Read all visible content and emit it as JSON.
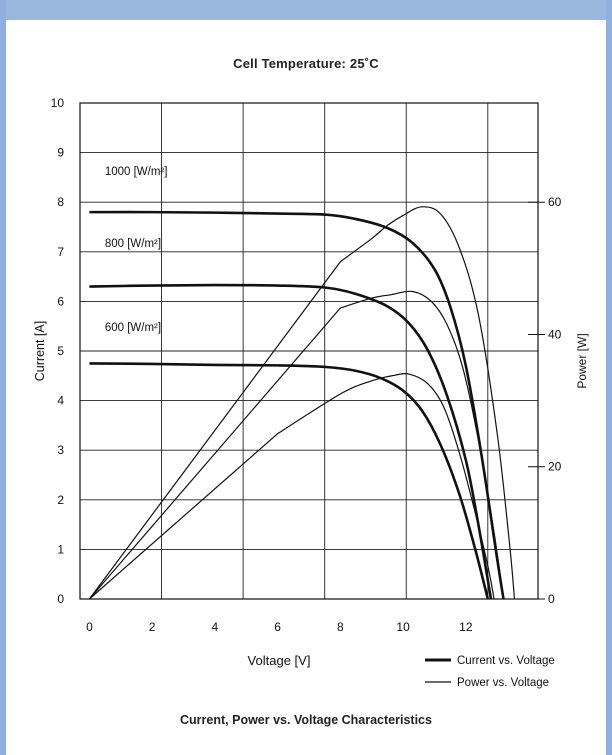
{
  "chart_data": {
    "type": "line",
    "title": "Cell Temperature:  25˚C",
    "caption": "Current, Power vs. Voltage Characteristics",
    "xlabel": "Voltage [V]",
    "ylabel": "Current [A]",
    "y2label": "Power [W]",
    "xlim": [
      -0.3,
      14.3
    ],
    "ylim": [
      0,
      10
    ],
    "y2lim": [
      0,
      75
    ],
    "xticks": [
      0,
      2,
      4,
      6,
      8,
      10,
      12
    ],
    "yticks": [
      0,
      1,
      2,
      3,
      4,
      5,
      6,
      7,
      8,
      9,
      10
    ],
    "y2ticks": [
      0,
      20,
      40,
      60
    ],
    "grid_x": [
      -0.3,
      2.3,
      4.9,
      7.5,
      10.1,
      12.7,
      14.3
    ],
    "irradiance_labels": [
      {
        "text": "1000 [W/m²]",
        "x": 0.3,
        "y": 8.55
      },
      {
        "text": "800 [W/m²]",
        "x": 0.3,
        "y": 7.1
      },
      {
        "text": "600 [W/m²]",
        "x": 0.3,
        "y": 5.4
      }
    ],
    "legend": [
      {
        "label": "Current vs. Voltage",
        "style": "thick"
      },
      {
        "label": "Power vs. Voltage",
        "style": "thin"
      }
    ],
    "legend_position": "bottom-right",
    "series": [
      {
        "kind": "current",
        "axis": "left",
        "points": [
          [
            0,
            7.8
          ],
          [
            2,
            7.8
          ],
          [
            4,
            7.79
          ],
          [
            6,
            7.77
          ],
          [
            7.5,
            7.75
          ],
          [
            8.5,
            7.66
          ],
          [
            9.5,
            7.48
          ],
          [
            10.3,
            7.18
          ],
          [
            11,
            6.65
          ],
          [
            11.5,
            5.9
          ],
          [
            12,
            4.7
          ],
          [
            12.5,
            2.9
          ],
          [
            13,
            0.8
          ],
          [
            13.2,
            0
          ]
        ]
      },
      {
        "kind": "current",
        "axis": "left",
        "points": [
          [
            0,
            6.3
          ],
          [
            2,
            6.32
          ],
          [
            4,
            6.33
          ],
          [
            6,
            6.32
          ],
          [
            7.5,
            6.28
          ],
          [
            8.5,
            6.15
          ],
          [
            9.5,
            5.9
          ],
          [
            10.2,
            5.55
          ],
          [
            10.8,
            5.0
          ],
          [
            11.4,
            4.1
          ],
          [
            12,
            2.8
          ],
          [
            12.4,
            1.5
          ],
          [
            12.8,
            0
          ]
        ]
      },
      {
        "kind": "current",
        "axis": "left",
        "points": [
          [
            0,
            4.75
          ],
          [
            2,
            4.74
          ],
          [
            4,
            4.72
          ],
          [
            6,
            4.71
          ],
          [
            7.5,
            4.68
          ],
          [
            8.5,
            4.6
          ],
          [
            9.3,
            4.45
          ],
          [
            10,
            4.2
          ],
          [
            10.6,
            3.8
          ],
          [
            11.2,
            3.1
          ],
          [
            11.8,
            2.1
          ],
          [
            12.3,
            1.0
          ],
          [
            12.7,
            0
          ]
        ]
      },
      {
        "kind": "power",
        "axis": "right",
        "points": [
          [
            0,
            0
          ],
          [
            8,
            51
          ],
          [
            9,
            54.5
          ],
          [
            9.5,
            56.5
          ],
          [
            10,
            58
          ],
          [
            10.6,
            59.3
          ],
          [
            11.2,
            58.2
          ],
          [
            11.8,
            53
          ],
          [
            12.4,
            43
          ],
          [
            13,
            25
          ],
          [
            13.4,
            8
          ],
          [
            13.55,
            0
          ]
        ]
      },
      {
        "kind": "power",
        "axis": "right",
        "points": [
          [
            0,
            0
          ],
          [
            8,
            44
          ],
          [
            9,
            45.5
          ],
          [
            9.6,
            46
          ],
          [
            10.3,
            46.5
          ],
          [
            10.9,
            45
          ],
          [
            11.4,
            41.5
          ],
          [
            11.9,
            35
          ],
          [
            12.4,
            24
          ],
          [
            12.9,
            10
          ],
          [
            13.2,
            0
          ]
        ]
      },
      {
        "kind": "power",
        "axis": "right",
        "points": [
          [
            0,
            0
          ],
          [
            6,
            25
          ],
          [
            8,
            31
          ],
          [
            9,
            33
          ],
          [
            9.7,
            33.8
          ],
          [
            10.2,
            34
          ],
          [
            10.8,
            32.5
          ],
          [
            11.3,
            29
          ],
          [
            11.8,
            22
          ],
          [
            12.3,
            13
          ],
          [
            12.7,
            5
          ],
          [
            12.9,
            0
          ]
        ]
      }
    ]
  }
}
